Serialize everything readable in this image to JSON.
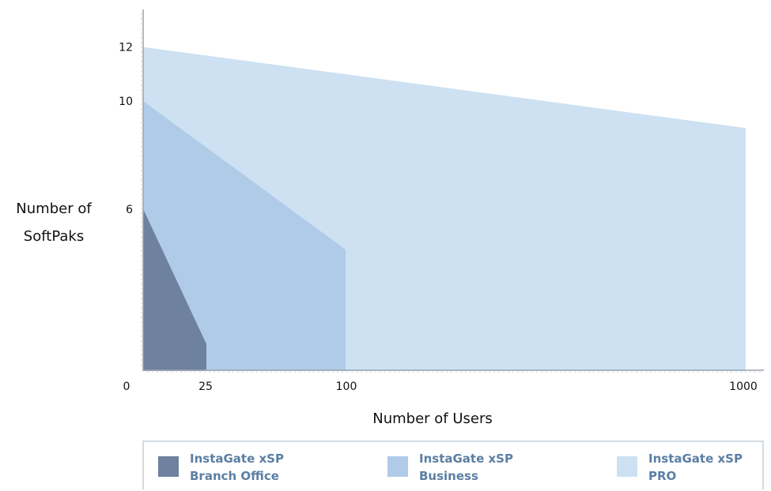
{
  "chart_data": {
    "type": "area",
    "xlabel": "Number of Users",
    "ylabel": [
      "Number of",
      "SoftPaks"
    ],
    "x_tick_labels": [
      "0",
      "25",
      "100",
      "1000"
    ],
    "y_tick_labels": [
      "6",
      "10",
      "12"
    ],
    "series": [
      {
        "name": "InstaGate xSP PRO",
        "name_lines": [
          "InstaGate xSP",
          "PRO"
        ],
        "color": "#cde1f2",
        "points": [
          {
            "x": "0",
            "y": 12
          },
          {
            "x": "1000",
            "y": 9
          }
        ]
      },
      {
        "name": "InstaGate xSP Business",
        "name_lines": [
          "InstaGate xSP",
          "Business"
        ],
        "color": "#b0cbe7",
        "points": [
          {
            "x": "0",
            "y": 10
          },
          {
            "x": "100",
            "y": 4.5
          }
        ]
      },
      {
        "name": "InstaGate xSP Branch Office",
        "name_lines": [
          "InstaGate xSP",
          "Branch Office"
        ],
        "color": "#6e819e",
        "points": [
          {
            "x": "0",
            "y": 6
          },
          {
            "x": "25",
            "y": 1
          }
        ]
      }
    ]
  }
}
